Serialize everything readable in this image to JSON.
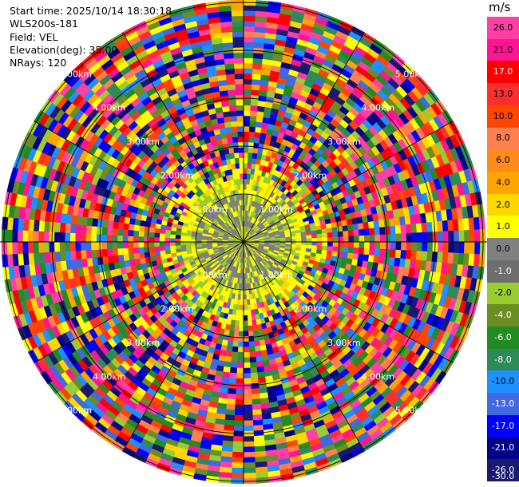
{
  "plot": {
    "start_time": "Start time: 2025/10/14 18:30:18",
    "instrument": "WLS200s-181",
    "field": "Field: VEL",
    "elevation": "Elevation(deg): 35.00",
    "nrays": "NRays: 120"
  },
  "range_rings": [
    {
      "label": "1.00km"
    },
    {
      "label": "2.00km"
    },
    {
      "label": "3.00km"
    },
    {
      "label": "4.00km"
    },
    {
      "label": "5.00km"
    }
  ],
  "colorbar": {
    "unit": "m/s",
    "ticks": [
      "26.0",
      "21.0",
      "17.0",
      "13.0",
      "10.0",
      "8.0",
      "6.0",
      "4.0",
      "2.0",
      "1.0",
      "0.0",
      "-1.0",
      "-2.0",
      "-4.0",
      "-6.0",
      "-8.0",
      "-10.0",
      "-13.0",
      "-17.0",
      "-21.0",
      "-26.0",
      "-30.0"
    ],
    "colors": [
      "#ff3fa6",
      "#ff1493",
      "#ff0000",
      "#ff2e2e",
      "#ff4500",
      "#ff7f50",
      "#ff8c1a",
      "#ffa500",
      "#ffd700",
      "#ffff00",
      "#808080",
      "#6e6e6e",
      "#9acd32",
      "#6b8e23",
      "#228b22",
      "#2e8b57",
      "#1e90ff",
      "#4169e1",
      "#0000ff",
      "#00008b",
      "#191970"
    ]
  }
}
